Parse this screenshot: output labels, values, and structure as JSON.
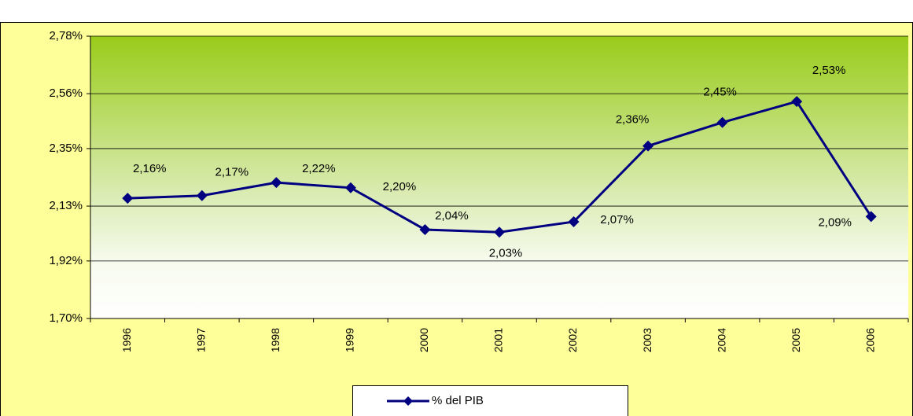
{
  "chart_data": {
    "type": "line",
    "categories": [
      "1996",
      "1997",
      "1998",
      "1999",
      "2000",
      "2001",
      "2002",
      "2003",
      "2004",
      "2005",
      "2006"
    ],
    "series": [
      {
        "name": "% del PIB",
        "color": "#000080",
        "values": [
          2.16,
          2.17,
          2.22,
          2.2,
          2.04,
          2.03,
          2.07,
          2.36,
          2.45,
          2.53,
          2.09
        ],
        "value_labels": [
          "2,16%",
          "2,17%",
          "2,22%",
          "2,20%",
          "2,04%",
          "2,03%",
          "2,07%",
          "2,36%",
          "2,45%",
          "2,53%",
          "2,09%"
        ]
      }
    ],
    "ylim": [
      1.7,
      2.78
    ],
    "yticks": [
      {
        "value": 1.7,
        "label": "1,70%"
      },
      {
        "value": 1.92,
        "label": "1,92%"
      },
      {
        "value": 2.13,
        "label": "2,13%"
      },
      {
        "value": 2.35,
        "label": "2,35%"
      },
      {
        "value": 2.56,
        "label": "2,56%"
      },
      {
        "value": 2.78,
        "label": "2,78%"
      }
    ],
    "grid": true,
    "legend": "bottom"
  }
}
